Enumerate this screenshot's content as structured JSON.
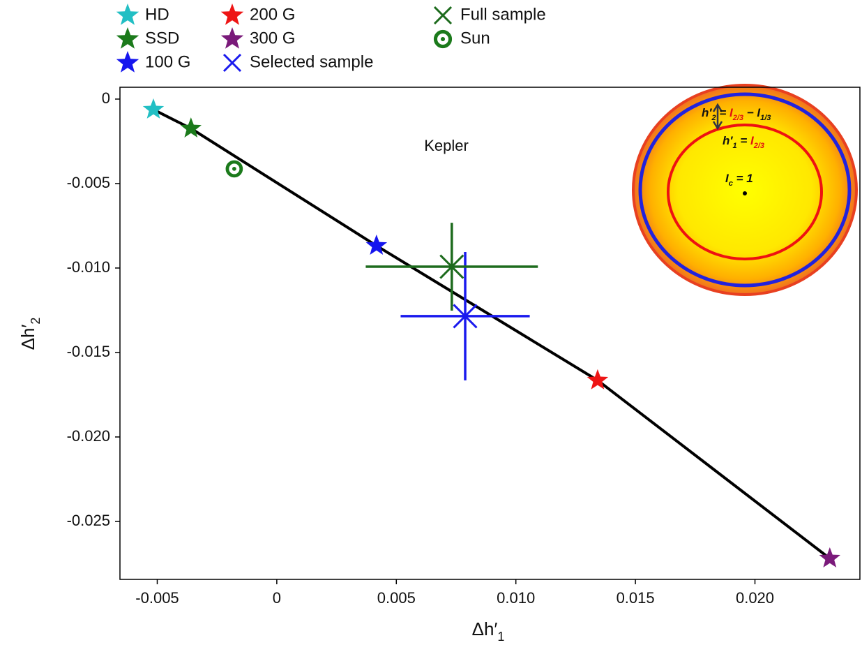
{
  "chart_data": {
    "type": "scatter",
    "xlabel": [
      "Δh′",
      "1"
    ],
    "ylabel": [
      "Δh′",
      "2"
    ],
    "xlim": [
      -0.00656,
      0.02439
    ],
    "ylim": [
      -0.02843,
      0.0007
    ],
    "xticks": [
      -0.005,
      0,
      0.005,
      {
        "value": 0.01,
        "label": "0.010"
      },
      {
        "value": 0.015,
        "label": "0.015"
      },
      {
        "value": 0.02,
        "label": "0.020"
      }
    ],
    "yticks": [
      0,
      -0.005,
      {
        "value": -0.01,
        "label": "-0.010"
      },
      {
        "value": -0.015,
        "label": "-0.015"
      },
      {
        "value": -0.02,
        "label": "-0.020"
      },
      {
        "value": -0.025,
        "label": "-0.025"
      }
    ],
    "series": [
      {
        "name": "HD",
        "color": "#22bfc4",
        "marker": "star",
        "x": [
          -0.00516
        ],
        "y": [
          -0.00062
        ]
      },
      {
        "name": "SSD",
        "color": "#1b7a1b",
        "marker": "star",
        "x": [
          -0.00359
        ],
        "y": [
          -0.00174
        ]
      },
      {
        "name": "100 G",
        "color": "#1515ee",
        "marker": "star",
        "x": [
          0.00417
        ],
        "y": [
          -0.00868
        ]
      },
      {
        "name": "200 G",
        "color": "#ee1515",
        "marker": "star",
        "x": [
          0.01342
        ],
        "y": [
          -0.01665
        ]
      },
      {
        "name": "300 G",
        "color": "#7a1a7a",
        "marker": "star",
        "x": [
          0.02313
        ],
        "y": [
          -0.02719
        ]
      },
      {
        "name": "Selected sample",
        "color": "#1a1aee",
        "marker": "x",
        "x": [
          0.00788
        ],
        "y": [
          -0.01285
        ],
        "xerr": [
          0.0027
        ],
        "yerr": [
          0.0038
        ]
      },
      {
        "name": "Full sample",
        "color": "#1d6b1d",
        "marker": "x",
        "x": [
          0.00732
        ],
        "y": [
          -0.00992
        ],
        "xerr": [
          0.0036
        ],
        "yerr": [
          0.0026
        ]
      },
      {
        "name": "Sun",
        "color": "#1b7a1b",
        "marker": "sun",
        "x": [
          -0.00178
        ],
        "y": [
          -0.00413
        ]
      }
    ],
    "line": {
      "color": "#000000",
      "x": [
        -0.00516,
        -0.00359,
        0.00417,
        0.01342,
        0.02313
      ],
      "y": [
        -0.00062,
        -0.00174,
        -0.00868,
        -0.01665,
        -0.02719
      ]
    },
    "annotation": "Kepler",
    "inset": {
      "h2": [
        "h′",
        "2",
        " = ",
        "",
        "I",
        "2/3",
        " − ",
        "",
        "I",
        "1/3"
      ],
      "h1": [
        "h′",
        "1",
        " = ",
        "",
        "I",
        "2/3"
      ],
      "ic": [
        "I",
        "c",
        " = 1",
        ""
      ]
    }
  }
}
